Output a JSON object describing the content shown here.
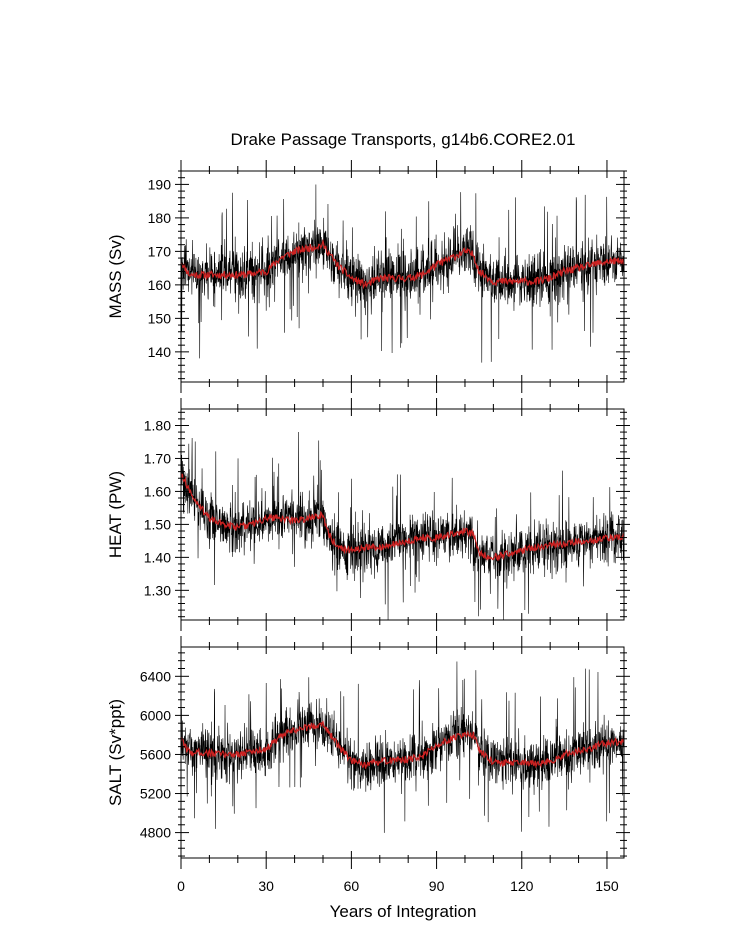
{
  "chart_data": {
    "type": "line",
    "title": "Drake Passage Transports, g14b6.CORE2.01",
    "xlabel": "Years of Integration",
    "xlim": [
      0,
      156
    ],
    "x_ticks": [
      0,
      30,
      60,
      90,
      120,
      150
    ],
    "x_tick_labels": [
      "0",
      "30",
      "60",
      "90",
      "120",
      "150"
    ],
    "series_colors": {
      "monthly": "#000000",
      "annual_mean": "#cc2222"
    },
    "panels": [
      {
        "ylabel": "MASS (Sv)",
        "ylim": [
          131,
          194
        ],
        "y_ticks": [
          140,
          150,
          160,
          170,
          180,
          190
        ],
        "y_tick_labels": [
          "140",
          "150",
          "160",
          "170",
          "180",
          "190"
        ],
        "annual_mean_anchors": [
          [
            0,
            167
          ],
          [
            3,
            163
          ],
          [
            8,
            163
          ],
          [
            15,
            163
          ],
          [
            22,
            163
          ],
          [
            30,
            164
          ],
          [
            35,
            168
          ],
          [
            40,
            170
          ],
          [
            45,
            171
          ],
          [
            50,
            172
          ],
          [
            55,
            166
          ],
          [
            60,
            162
          ],
          [
            65,
            160
          ],
          [
            70,
            162
          ],
          [
            75,
            162
          ],
          [
            80,
            162
          ],
          [
            85,
            163
          ],
          [
            90,
            166
          ],
          [
            95,
            168
          ],
          [
            100,
            170
          ],
          [
            103,
            169
          ],
          [
            105,
            164
          ],
          [
            110,
            161
          ],
          [
            115,
            161
          ],
          [
            120,
            161
          ],
          [
            125,
            161
          ],
          [
            130,
            162
          ],
          [
            135,
            164
          ],
          [
            140,
            165
          ],
          [
            145,
            166
          ],
          [
            150,
            167
          ],
          [
            155,
            167
          ]
        ],
        "monthly_spread": 9
      },
      {
        "ylabel": "HEAT (PW)",
        "ylim": [
          1.21,
          1.85
        ],
        "y_ticks": [
          1.3,
          1.4,
          1.5,
          1.6,
          1.7,
          1.8
        ],
        "y_tick_labels": [
          "1.30",
          "1.40",
          "1.50",
          "1.60",
          "1.70",
          "1.80"
        ],
        "annual_mean_anchors": [
          [
            0,
            1.66
          ],
          [
            2,
            1.62
          ],
          [
            5,
            1.57
          ],
          [
            10,
            1.52
          ],
          [
            15,
            1.5
          ],
          [
            20,
            1.49
          ],
          [
            25,
            1.5
          ],
          [
            30,
            1.52
          ],
          [
            35,
            1.52
          ],
          [
            40,
            1.51
          ],
          [
            45,
            1.52
          ],
          [
            50,
            1.53
          ],
          [
            52,
            1.47
          ],
          [
            55,
            1.43
          ],
          [
            60,
            1.42
          ],
          [
            65,
            1.43
          ],
          [
            70,
            1.43
          ],
          [
            75,
            1.44
          ],
          [
            80,
            1.45
          ],
          [
            85,
            1.46
          ],
          [
            90,
            1.46
          ],
          [
            95,
            1.47
          ],
          [
            100,
            1.48
          ],
          [
            103,
            1.47
          ],
          [
            105,
            1.41
          ],
          [
            110,
            1.4
          ],
          [
            115,
            1.41
          ],
          [
            120,
            1.42
          ],
          [
            125,
            1.43
          ],
          [
            130,
            1.44
          ],
          [
            135,
            1.44
          ],
          [
            140,
            1.45
          ],
          [
            145,
            1.45
          ],
          [
            150,
            1.46
          ],
          [
            155,
            1.46
          ]
        ],
        "monthly_spread": 0.085
      },
      {
        "ylabel": "SALT (Sv*ppt)",
        "ylim": [
          4540,
          6700
        ],
        "y_ticks": [
          4800,
          5200,
          5600,
          6000,
          6400
        ],
        "y_tick_labels": [
          "4800",
          "5200",
          "5600",
          "6000",
          "6400"
        ],
        "annual_mean_anchors": [
          [
            0,
            5750
          ],
          [
            3,
            5620
          ],
          [
            8,
            5620
          ],
          [
            15,
            5600
          ],
          [
            22,
            5610
          ],
          [
            30,
            5660
          ],
          [
            35,
            5780
          ],
          [
            40,
            5850
          ],
          [
            45,
            5880
          ],
          [
            50,
            5920
          ],
          [
            55,
            5700
          ],
          [
            60,
            5540
          ],
          [
            65,
            5480
          ],
          [
            70,
            5530
          ],
          [
            75,
            5540
          ],
          [
            80,
            5550
          ],
          [
            85,
            5580
          ],
          [
            90,
            5700
          ],
          [
            95,
            5760
          ],
          [
            100,
            5820
          ],
          [
            103,
            5800
          ],
          [
            105,
            5640
          ],
          [
            110,
            5520
          ],
          [
            115,
            5510
          ],
          [
            120,
            5510
          ],
          [
            125,
            5500
          ],
          [
            130,
            5530
          ],
          [
            135,
            5600
          ],
          [
            140,
            5640
          ],
          [
            145,
            5670
          ],
          [
            150,
            5720
          ],
          [
            155,
            5730
          ]
        ],
        "monthly_spread": 290
      }
    ]
  }
}
